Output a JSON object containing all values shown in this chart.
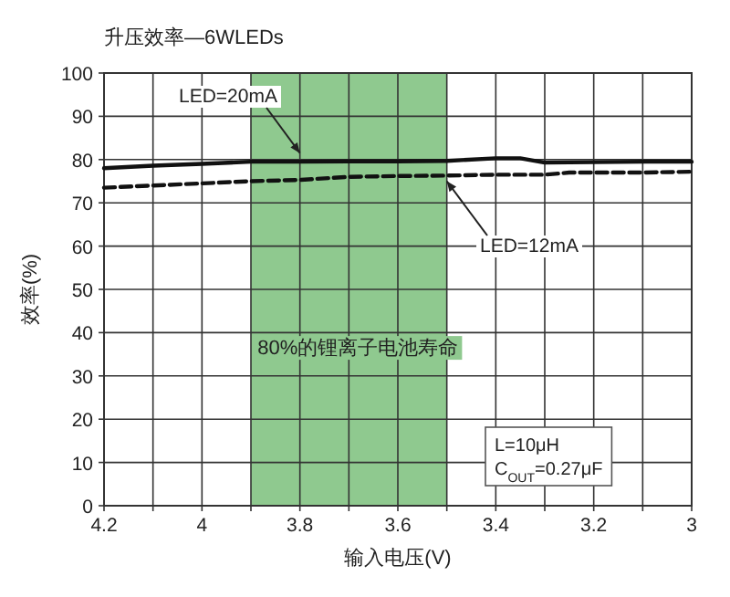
{
  "chart_data": {
    "type": "line",
    "title": "升压效率—6WLEDs",
    "xlabel": "输入电压(V)",
    "ylabel": "效率(%)",
    "xlim": [
      4.2,
      3
    ],
    "ylim": [
      0,
      100
    ],
    "xticks": [
      4.2,
      {
        "value": 4.1,
        "label": null
      },
      4,
      {
        "value": 3.9,
        "label": null
      },
      3.8,
      {
        "value": 3.7,
        "label": null
      },
      3.6,
      {
        "value": 3.5,
        "label": null
      },
      3.4,
      {
        "value": 3.3,
        "label": null
      },
      3.2,
      {
        "value": 3.1,
        "label": null
      },
      3
    ],
    "yticks": [
      0,
      10,
      20,
      30,
      40,
      50,
      60,
      70,
      80,
      90,
      100
    ],
    "grid": true,
    "legend": false,
    "series": [
      {
        "name": "LED=20mA",
        "color": "#111111",
        "line_style": "solid",
        "x": [
          4.2,
          4.1,
          4.0,
          3.9,
          3.8,
          3.7,
          3.6,
          3.5,
          3.4,
          3.35,
          3.3,
          3.2,
          3.1,
          3.0
        ],
        "values": [
          78,
          78.6,
          79,
          79.5,
          79.5,
          79.6,
          79.6,
          79.7,
          80.3,
          80.3,
          79.3,
          79.4,
          79.5,
          79.5
        ]
      },
      {
        "name": "LED=12mA",
        "color": "#111111",
        "line_style": "dashed",
        "x": [
          4.2,
          4.1,
          4.0,
          3.9,
          3.8,
          3.7,
          3.6,
          3.5,
          3.4,
          3.3,
          3.25,
          3.2,
          3.1,
          3.0
        ],
        "values": [
          73.5,
          74,
          74.5,
          75,
          75.3,
          76,
          76.2,
          76.3,
          76.5,
          76.5,
          77,
          77,
          77,
          77.2
        ]
      }
    ],
    "bands": [
      {
        "axis": "x",
        "from": 3.9,
        "to": 3.5,
        "label": "80%的锂离子电池寿命",
        "color": "#8fc98f"
      }
    ],
    "annotations": [
      "L=10μH",
      "C$_{OUT}$=0.27μF"
    ]
  }
}
